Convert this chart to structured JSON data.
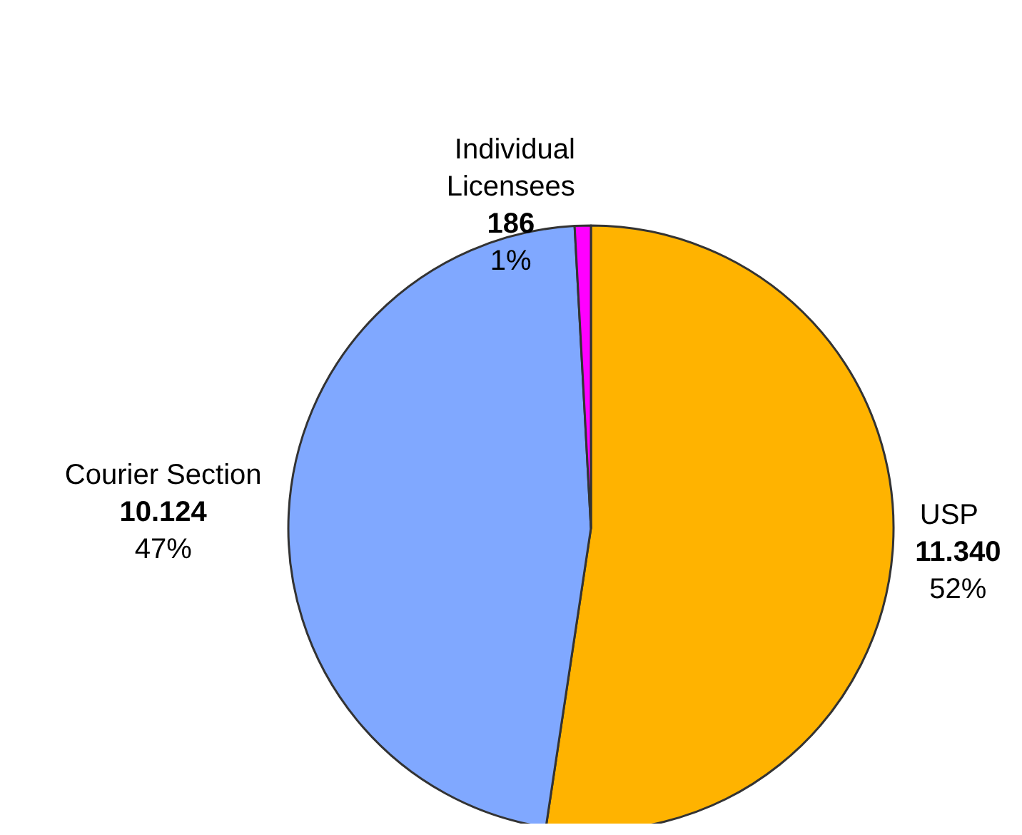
{
  "chart_data": {
    "type": "pie",
    "categories": [
      "USP",
      "Courier Section",
      "Individual Licensees"
    ],
    "values": [
      11340,
      10124,
      186
    ],
    "value_labels": [
      "11.340\n52%",
      "10.124\n47%",
      "186\n1%"
    ],
    "colors": [
      "#ffb300",
      "#80a8ff",
      "#ff00ff"
    ],
    "legend": false
  }
}
